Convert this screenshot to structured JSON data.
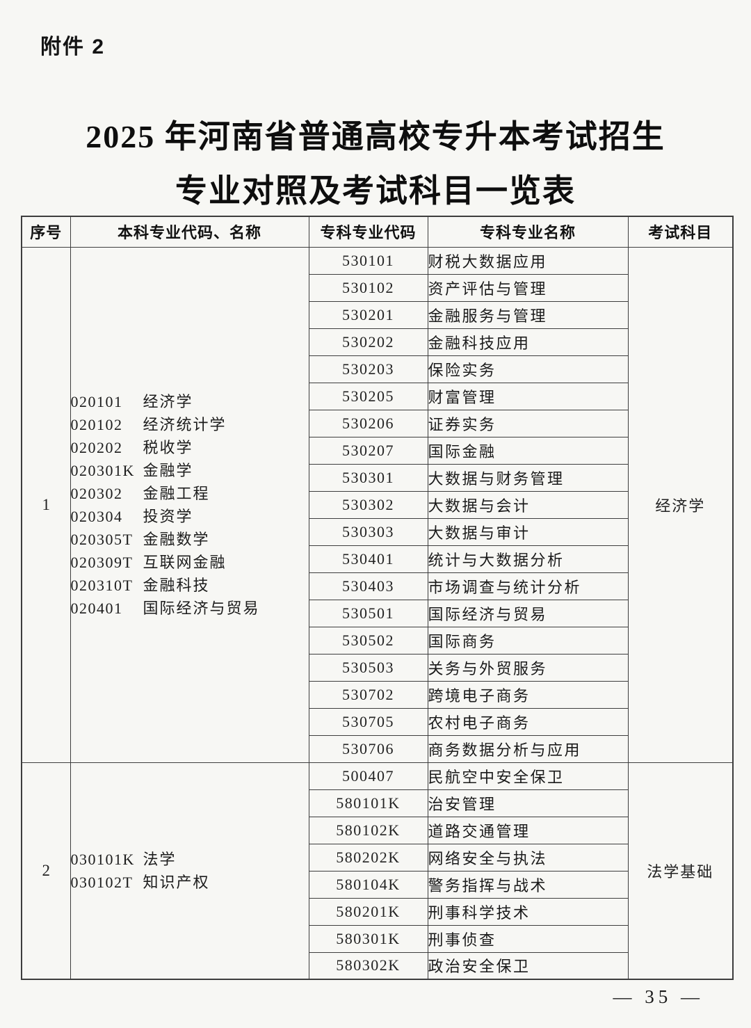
{
  "page": {
    "attachment_label": "附件 2",
    "title_line1": "2025 年河南省普通高校专升本考试招生",
    "title_line2": "专业对照及考试科目一览表",
    "page_number": "— 35 —"
  },
  "table": {
    "headers": [
      "序号",
      "本科专业代码、名称",
      "专科专业代码",
      "专科专业名称",
      "考试科目"
    ],
    "sections": [
      {
        "serial": "1",
        "exam_subject": "经济学",
        "undergrad_majors": [
          {
            "code": "020101",
            "name": "经济学"
          },
          {
            "code": "020102",
            "name": "经济统计学"
          },
          {
            "code": "020202",
            "name": "税收学"
          },
          {
            "code": "020301K",
            "name": "金融学"
          },
          {
            "code": "020302",
            "name": "金融工程"
          },
          {
            "code": "020304",
            "name": "投资学"
          },
          {
            "code": "020305T",
            "name": "金融数学"
          },
          {
            "code": "020309T",
            "name": "互联网金融"
          },
          {
            "code": "020310T",
            "name": "金融科技"
          },
          {
            "code": "020401",
            "name": "国际经济与贸易"
          }
        ],
        "vocational_majors": [
          {
            "code": "530101",
            "name": "财税大数据应用"
          },
          {
            "code": "530102",
            "name": "资产评估与管理"
          },
          {
            "code": "530201",
            "name": "金融服务与管理"
          },
          {
            "code": "530202",
            "name": "金融科技应用"
          },
          {
            "code": "530203",
            "name": "保险实务"
          },
          {
            "code": "530205",
            "name": "财富管理"
          },
          {
            "code": "530206",
            "name": "证券实务"
          },
          {
            "code": "530207",
            "name": "国际金融"
          },
          {
            "code": "530301",
            "name": "大数据与财务管理"
          },
          {
            "code": "530302",
            "name": "大数据与会计"
          },
          {
            "code": "530303",
            "name": "大数据与审计"
          },
          {
            "code": "530401",
            "name": "统计与大数据分析"
          },
          {
            "code": "530403",
            "name": "市场调查与统计分析"
          },
          {
            "code": "530501",
            "name": "国际经济与贸易"
          },
          {
            "code": "530502",
            "name": "国际商务"
          },
          {
            "code": "530503",
            "name": "关务与外贸服务"
          },
          {
            "code": "530702",
            "name": "跨境电子商务"
          },
          {
            "code": "530705",
            "name": "农村电子商务"
          },
          {
            "code": "530706",
            "name": "商务数据分析与应用"
          }
        ]
      },
      {
        "serial": "2",
        "exam_subject": "法学基础",
        "undergrad_majors": [
          {
            "code": "030101K",
            "name": "法学"
          },
          {
            "code": "030102T",
            "name": "知识产权"
          }
        ],
        "vocational_majors": [
          {
            "code": "500407",
            "name": "民航空中安全保卫"
          },
          {
            "code": "580101K",
            "name": "治安管理"
          },
          {
            "code": "580102K",
            "name": "道路交通管理"
          },
          {
            "code": "580202K",
            "name": "网络安全与执法"
          },
          {
            "code": "580104K",
            "name": "警务指挥与战术"
          },
          {
            "code": "580201K",
            "name": "刑事科学技术"
          },
          {
            "code": "580301K",
            "name": "刑事侦查"
          },
          {
            "code": "580302K",
            "name": "政治安全保卫"
          }
        ]
      }
    ]
  }
}
